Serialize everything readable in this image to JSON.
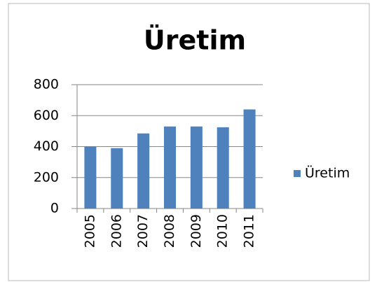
{
  "chart_data": {
    "type": "bar",
    "title": "Üretim",
    "categories": [
      "2005",
      "2006",
      "2007",
      "2008",
      "2009",
      "2010",
      "2011"
    ],
    "series": [
      {
        "name": "Üretim",
        "color": "#4f81bd",
        "values": [
          400,
          390,
          485,
          530,
          530,
          525,
          640
        ]
      }
    ],
    "ylim": [
      0,
      800
    ],
    "yticks": [
      0,
      200,
      400,
      600,
      800
    ],
    "grid": true,
    "legend": "right"
  }
}
